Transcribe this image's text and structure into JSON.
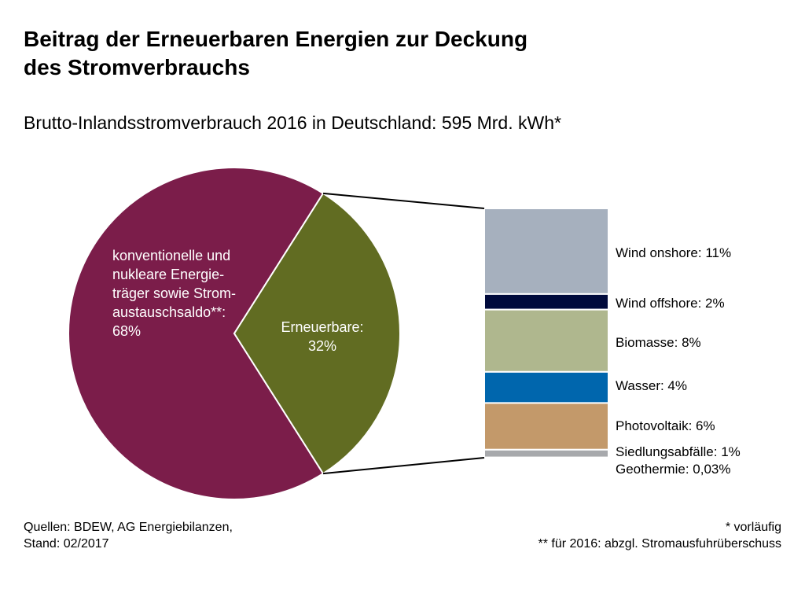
{
  "title": {
    "line1": "Beitrag der Erneuerbaren Energien zur Deckung",
    "line2": "des Stromverbrauchs"
  },
  "subtitle": "Brutto-Inlandsstromverbrauch 2016 in Deutschland: 595 Mrd. kWh*",
  "chart_data": [
    {
      "type": "pie",
      "slices": [
        {
          "name_lines": [
            "konventionelle und",
            "nukleare Energie-",
            "träger sowie Strom-",
            "austauschsaldo**:",
            "68%"
          ],
          "value": 68,
          "color": "#7b1d4a"
        },
        {
          "name_lines": [
            "Erneuerbare:",
            "32%"
          ],
          "value": 32,
          "color": "#616c22"
        }
      ]
    },
    {
      "type": "bar",
      "stacked": true,
      "series": [
        {
          "label": "Wind onshore: 11%",
          "value": 11,
          "color": "#a6b0be"
        },
        {
          "label": "Wind offshore: 2%",
          "value": 2,
          "color": "#000a3c"
        },
        {
          "label": "Biomasse: 8%",
          "value": 8,
          "color": "#afb78e"
        },
        {
          "label": "Wasser: 4%",
          "value": 4,
          "color": "#0066ad"
        },
        {
          "label": "Photovoltaik: 6%",
          "value": 6,
          "color": "#c3996a"
        },
        {
          "label": "Siedlungsabfälle: 1%",
          "value": 1,
          "color": "#a7a9ac"
        },
        {
          "label": "Geothermie: 0,03%",
          "value": 0.03,
          "color": "#ffffff"
        }
      ]
    }
  ],
  "footer": {
    "sources_line1": "Quellen: BDEW,  AG Energiebilanzen,",
    "sources_line2": "Stand: 02/2017",
    "note1": "* vorläufig",
    "note2": "** für 2016: abzgl. Stromausfuhrüberschuss"
  }
}
